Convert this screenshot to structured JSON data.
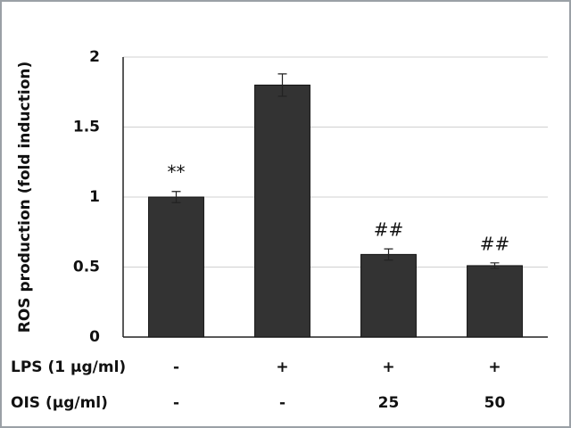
{
  "chart_data": {
    "type": "bar",
    "ylabel": "ROS production (fold induction)",
    "categories": [
      null,
      null,
      null,
      null
    ],
    "values": [
      1.0,
      1.8,
      0.59,
      0.51
    ],
    "errors": [
      0.04,
      0.08,
      0.04,
      0.02
    ],
    "value_annotations": [
      "**",
      null,
      "##",
      "##"
    ],
    "color": "#333333",
    "ylim": [
      0,
      2
    ],
    "yticks": [
      0,
      0.5,
      1,
      1.5,
      2
    ],
    "grid": true,
    "treatments": [
      {
        "label": "LPS (1 µg/ml)",
        "values": [
          "-",
          "+",
          "+",
          "+"
        ]
      },
      {
        "label": "OIS (µg/ml)",
        "values": [
          "-",
          "-",
          "25",
          "50"
        ]
      }
    ]
  }
}
